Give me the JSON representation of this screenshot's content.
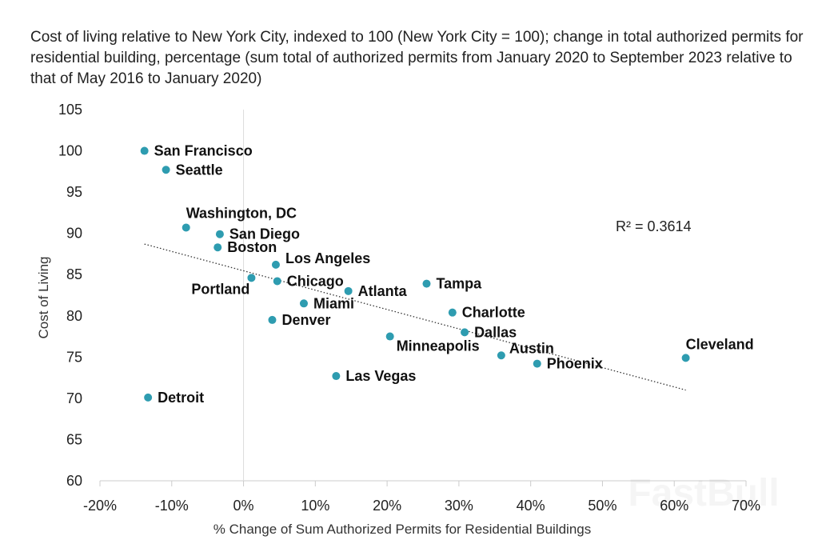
{
  "chart_data": {
    "type": "scatter",
    "subtitle": "Cost of living relative to New York City, indexed to 100 (New York City = 100); change in total authorized permits for residential building, percentage (sum total of authorized permits from January 2020 to September 2023 relative to that of May 2016 to January 2020)",
    "xlabel": "% Change of Sum Authorized Permits for Residential Buildings",
    "ylabel": "Cost of Living",
    "xlim": [
      -20,
      70
    ],
    "ylim": [
      60,
      105
    ],
    "xticks": [
      "-20%",
      "-10%",
      "0%",
      "10%",
      "20%",
      "30%",
      "40%",
      "50%",
      "60%",
      "70%"
    ],
    "yticks": [
      "60",
      "65",
      "70",
      "75",
      "80",
      "85",
      "90",
      "95",
      "100",
      "105"
    ],
    "grid": false,
    "point_color": "#2e9cb0",
    "points": [
      {
        "name": "San Francisco",
        "x": -13.8,
        "y": 100.0
      },
      {
        "name": "Seattle",
        "x": -10.8,
        "y": 97.7
      },
      {
        "name": "Washington, DC",
        "x": -8.0,
        "y": 90.7
      },
      {
        "name": "San Diego",
        "x": -3.3,
        "y": 89.9
      },
      {
        "name": "Boston",
        "x": -3.6,
        "y": 88.3
      },
      {
        "name": "Los Angeles",
        "x": 4.5,
        "y": 86.2
      },
      {
        "name": "Portland",
        "x": 1.1,
        "y": 84.6
      },
      {
        "name": "Chicago",
        "x": 4.7,
        "y": 84.2
      },
      {
        "name": "Atlanta",
        "x": 14.6,
        "y": 83.0
      },
      {
        "name": "Miami",
        "x": 8.4,
        "y": 81.5
      },
      {
        "name": "Denver",
        "x": 4.0,
        "y": 79.5
      },
      {
        "name": "Tampa",
        "x": 25.5,
        "y": 83.9
      },
      {
        "name": "Charlotte",
        "x": 29.1,
        "y": 80.4
      },
      {
        "name": "Dallas",
        "x": 30.8,
        "y": 78.0
      },
      {
        "name": "Minneapolis",
        "x": 20.4,
        "y": 77.5
      },
      {
        "name": "Austin",
        "x": 35.9,
        "y": 75.2
      },
      {
        "name": "Phoenix",
        "x": 40.9,
        "y": 74.2
      },
      {
        "name": "Cleveland",
        "x": 61.6,
        "y": 74.9
      },
      {
        "name": "Las Vegas",
        "x": 12.9,
        "y": 72.7
      },
      {
        "name": "Detroit",
        "x": -13.3,
        "y": 70.1
      }
    ],
    "trendline": {
      "style": "dotted",
      "x": [
        -13.8,
        61.6
      ],
      "y": [
        88.7,
        71.0
      ]
    },
    "annotation": "R² = 0.3614"
  },
  "watermark": "FastBull"
}
